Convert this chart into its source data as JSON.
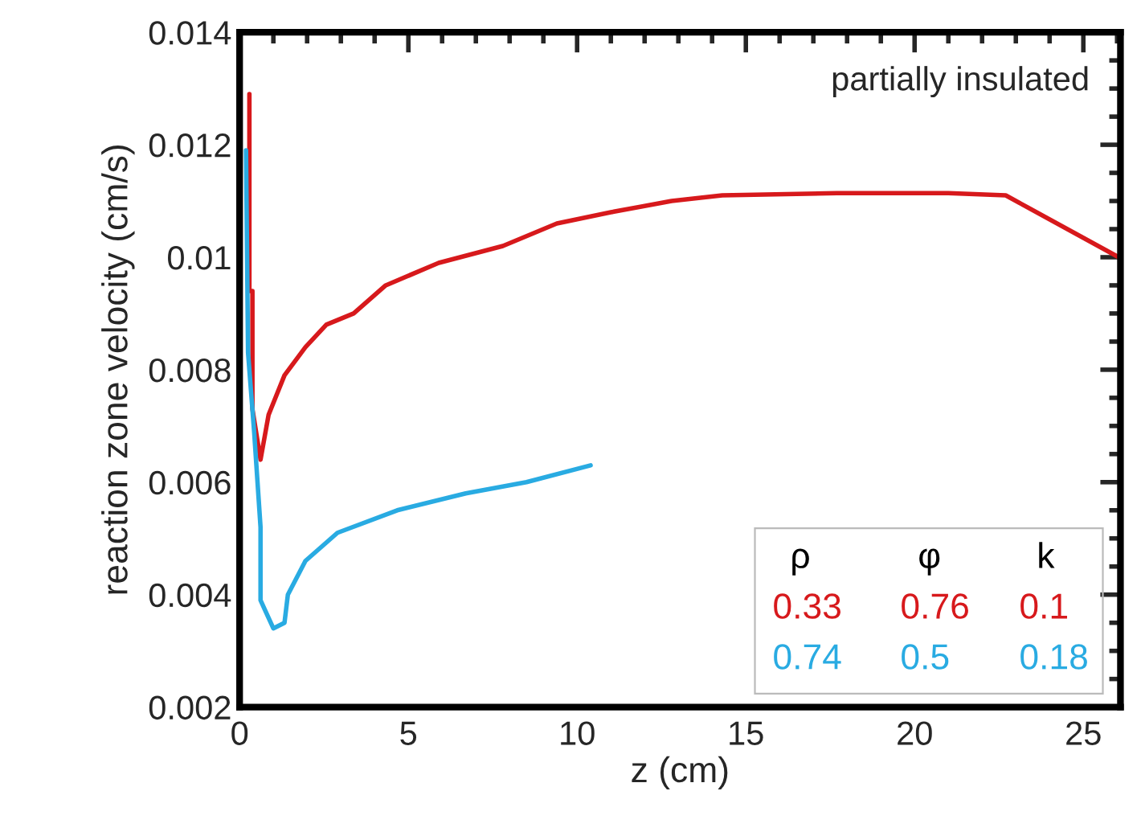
{
  "chart_data": {
    "type": "line",
    "xlabel": "z (cm)",
    "ylabel": "reaction zone velocity (cm/s)",
    "xlim": [
      0,
      26.1
    ],
    "xticks": [
      0,
      5,
      10,
      15,
      20,
      25
    ],
    "ylim": [
      0.002,
      0.014
    ],
    "yticks": [
      0.002,
      0.004,
      0.006,
      0.008,
      0.01,
      0.012,
      0.014
    ],
    "grid": false,
    "legend_title": "ρ φ k",
    "annotations": [
      "partially insulated"
    ],
    "series": [
      {
        "name": "0.33 0.76 0.1",
        "color": "#d7191c",
        "x": [
          0.29,
          0.29,
          0.38,
          0.38,
          0.62,
          0.86,
          1.33,
          1.95,
          2.57,
          3.38,
          4.33,
          5.9,
          7.8,
          9.4,
          11.0,
          12.8,
          14.3,
          17.7,
          21.0,
          22.7,
          26.05
        ],
        "values": [
          0.0129,
          0.0094,
          0.0094,
          0.0073,
          0.0064,
          0.0072,
          0.0079,
          0.0084,
          0.0088,
          0.009,
          0.0095,
          0.0099,
          0.0102,
          0.0106,
          0.0108,
          0.011,
          0.0111,
          0.01114,
          0.01114,
          0.0111,
          0.01
        ]
      },
      {
        "name": "0.74 0.5 0.18",
        "color": "#29abe2",
        "x": [
          0.19,
          0.25,
          0.43,
          0.62,
          0.62,
          1.0,
          1.33,
          1.43,
          1.95,
          2.9,
          4.67,
          6.7,
          8.5,
          10.4
        ],
        "values": [
          0.0119,
          0.0083,
          0.0069,
          0.0052,
          0.0039,
          0.0034,
          0.0035,
          0.004,
          0.0046,
          0.0051,
          0.0055,
          0.0058,
          0.006,
          0.0063
        ]
      }
    ]
  }
}
